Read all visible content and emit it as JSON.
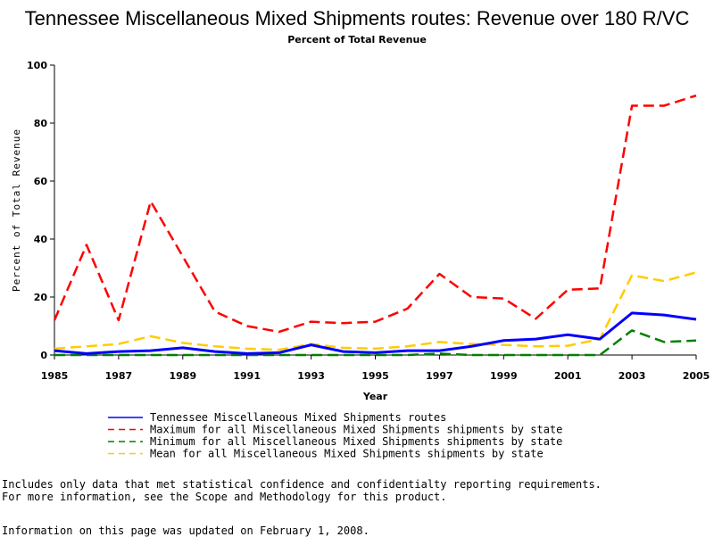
{
  "chart_data": {
    "type": "line",
    "title": "Tennessee Miscellaneous Mixed Shipments routes: Revenue over 180 R/VC",
    "subtitle": "Percent of Total Revenue",
    "xlabel": "Year",
    "ylabel": "Percent of Total Revenue",
    "xlim": [
      1985,
      2005
    ],
    "ylim": [
      0,
      100
    ],
    "xticks": [
      1985,
      1987,
      1989,
      1991,
      1993,
      1995,
      1997,
      1999,
      2001,
      2003,
      2005
    ],
    "yticks": [
      0,
      20,
      40,
      60,
      80,
      100
    ],
    "grid": false,
    "legend_position": "bottom",
    "x": [
      1985,
      1986,
      1987,
      1988,
      1989,
      1990,
      1991,
      1992,
      1993,
      1994,
      1995,
      1996,
      1997,
      1998,
      1999,
      2000,
      2001,
      2002,
      2003,
      2004,
      2005
    ],
    "series": [
      {
        "name": "Tennessee Miscellaneous Mixed Shipments routes",
        "color": "#0000ff",
        "dash": "solid",
        "values": [
          1.5,
          0.5,
          1.2,
          1.5,
          2.5,
          1.2,
          0.5,
          0.8,
          3.5,
          1.2,
          0.8,
          1.5,
          1.5,
          3.0,
          5.0,
          5.5,
          7.0,
          5.5,
          14.5,
          13.8,
          12.3
        ]
      },
      {
        "name": "Maximum for all Miscellaneous Mixed Shipments shipments by state",
        "color": "#ff0000",
        "dash": "dashed",
        "values": [
          12,
          38,
          12,
          53,
          34,
          15,
          10,
          8,
          11.5,
          11,
          11.5,
          16,
          28,
          20,
          19.5,
          12.5,
          22.5,
          23,
          86,
          86,
          89.5
        ]
      },
      {
        "name": "Minimum for all Miscellaneous Mixed Shipments shipments by state",
        "color": "#008000",
        "dash": "dashed",
        "values": [
          0,
          0,
          0,
          0,
          0,
          0,
          0,
          0,
          0,
          0,
          0,
          0,
          0.5,
          0,
          0,
          0,
          0,
          0,
          8.5,
          4.5,
          5.0
        ]
      },
      {
        "name": "Mean for all Miscellaneous Mixed Shipments shipments by state",
        "color": "#ffcc00",
        "dash": "dashed",
        "values": [
          2.2,
          3.0,
          3.8,
          6.5,
          4.2,
          3.0,
          2.2,
          1.8,
          3.8,
          2.5,
          2.2,
          3.0,
          4.5,
          3.8,
          3.5,
          3.0,
          3.2,
          5.5,
          27.5,
          25.5,
          28.5
        ]
      }
    ]
  },
  "footnotes": {
    "line1": "Includes only data that met statistical confidence and confidentialty reporting requirements.",
    "line2": "For more information, see the Scope and Methodology for this product.",
    "line3": "Information on this page was updated on February 1, 2008."
  }
}
